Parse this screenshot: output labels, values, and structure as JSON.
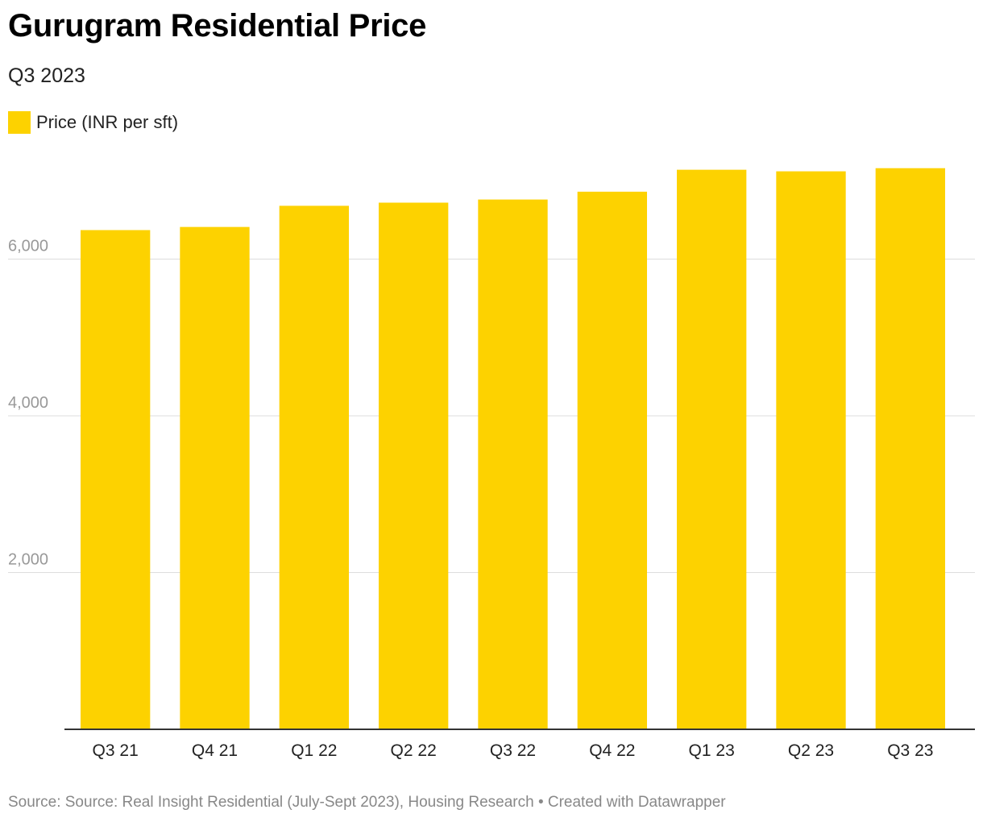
{
  "title": "Gurugram Residential Price",
  "subtitle": "Q3 2023",
  "source": "Source: Source: Real Insight Residential (July-Sept 2023), Housing Research • Created with Datawrapper",
  "colors": {
    "bar": "#FDD200",
    "grid": "#dddddd",
    "axis": "#333333",
    "tick_label": "#999999"
  },
  "chart_data": {
    "type": "bar",
    "categories": [
      "Q3 21",
      "Q4 21",
      "Q1 22",
      "Q2 22",
      "Q3 22",
      "Q4 22",
      "Q1 23",
      "Q2 23",
      "Q3 23"
    ],
    "series": [
      {
        "name": "Price (INR per sft)",
        "values": [
          6370,
          6410,
          6680,
          6720,
          6760,
          6860,
          7140,
          7120,
          7160
        ]
      }
    ],
    "ylim": [
      0,
      8000
    ],
    "yticks": [
      2000,
      4000,
      6000
    ],
    "ytick_labels": [
      "2,000",
      "4,000",
      "6,000"
    ],
    "grid": true,
    "legend": "top-left",
    "xlabel": "",
    "ylabel": ""
  }
}
